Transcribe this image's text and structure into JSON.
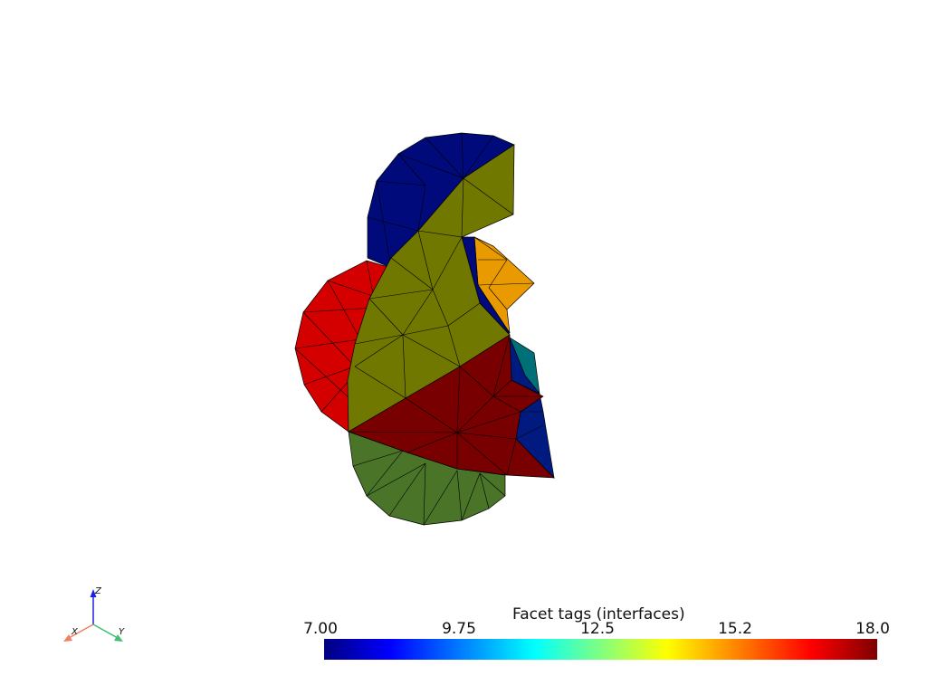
{
  "colorbar": {
    "title": "Facet tags (interfaces)",
    "min": 7.0,
    "max": 18.0,
    "ticks": [
      "7.00",
      "9.75",
      "12.5",
      "15.2",
      "18.0"
    ],
    "colormap": "jet",
    "colors": [
      "#00007f",
      "#0000ff",
      "#00ffff",
      "#80ff80",
      "#ffff00",
      "#ff0000",
      "#7f0000"
    ]
  },
  "orientation_axes": {
    "x_label": "X",
    "y_label": "Y",
    "z_label": "Z",
    "x_color": "#f08060",
    "y_color": "#40c070",
    "z_color": "#2020e0"
  },
  "mesh": {
    "background": "#ffffff",
    "edge_color": "#000000",
    "region_colors": {
      "navy": "#000a7a",
      "olive": "#707800",
      "red": "#d40000",
      "dark_red": "#780000",
      "green": "#4a7428",
      "orange": "#e89a00",
      "teal": "#007078",
      "blue": "#001a80"
    }
  }
}
